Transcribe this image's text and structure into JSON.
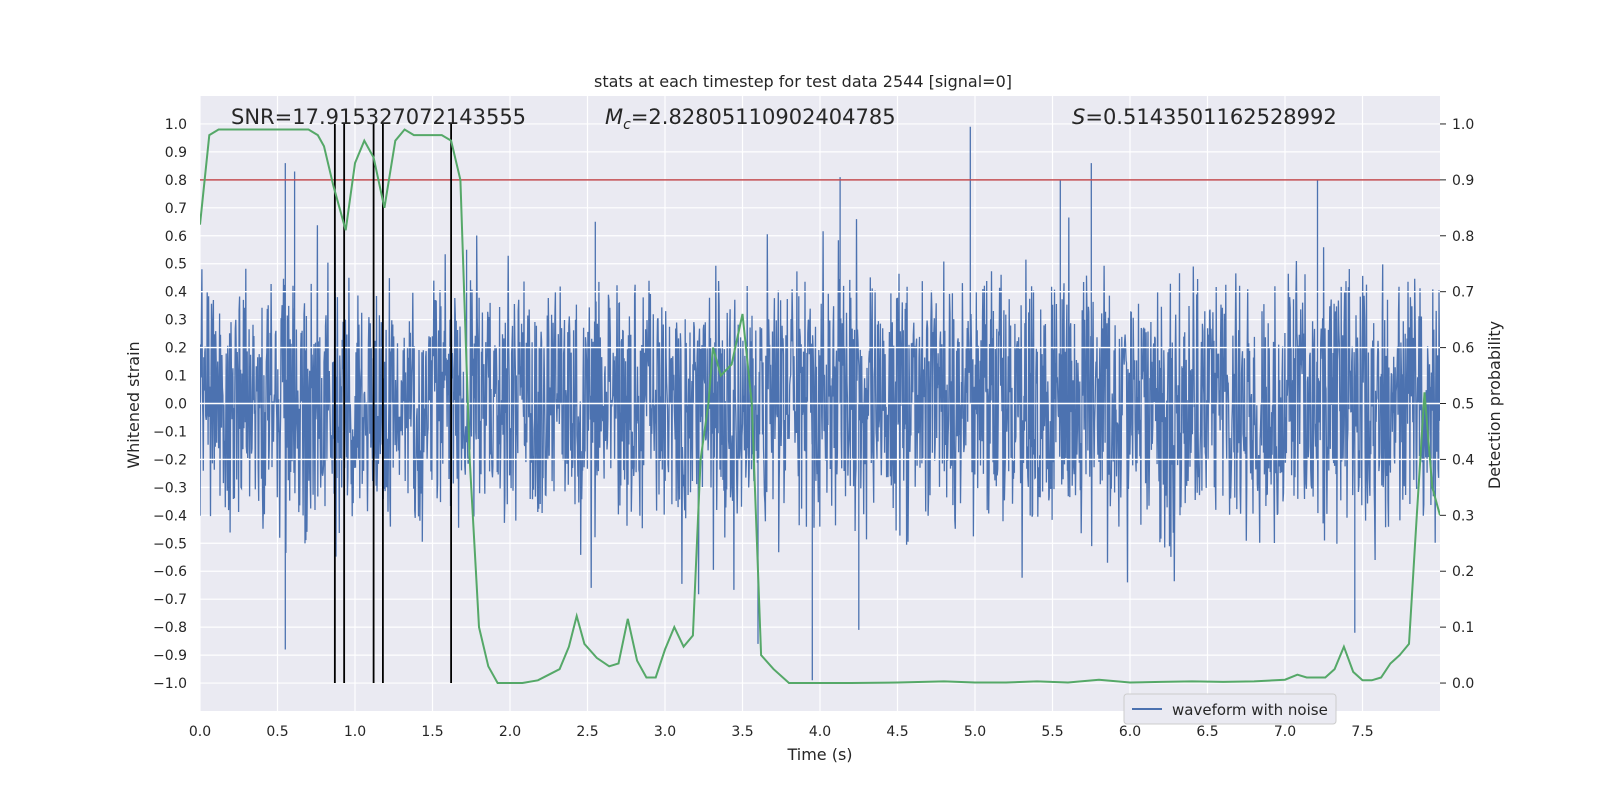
{
  "chart_data": {
    "type": "line",
    "title": "stats at each timestep for test data 2544 [signal=0]",
    "xlabel": "Time (s)",
    "ylabel_left": "Whitened strain",
    "ylabel_right": "Detection probability",
    "xlim": [
      0.0,
      8.0
    ],
    "ylim_left": [
      -1.1,
      1.1
    ],
    "ylim_right": [
      -0.05,
      1.05
    ],
    "xticks": [
      "0.0",
      "0.5",
      "1.0",
      "1.5",
      "2.0",
      "2.5",
      "3.0",
      "3.5",
      "4.0",
      "4.5",
      "5.0",
      "5.5",
      "6.0",
      "6.5",
      "7.0",
      "7.5"
    ],
    "yticks_left": [
      "1.0",
      "0.9",
      "0.8",
      "0.7",
      "0.6",
      "0.5",
      "0.4",
      "0.3",
      "0.2",
      "0.1",
      "0.0",
      "−0.1",
      "−0.2",
      "−0.3",
      "−0.4",
      "−0.5",
      "−0.6",
      "−0.7",
      "−0.8",
      "−0.9",
      "−1.0"
    ],
    "yticks_right": [
      "1.0",
      "0.9",
      "0.8",
      "0.7",
      "0.6",
      "0.5",
      "0.4",
      "0.3",
      "0.2",
      "0.1",
      "0.0"
    ],
    "annotations": {
      "snr": "SNR=17.915327072143555",
      "mc_symbol": "M",
      "mc_sub": "c",
      "mc_value": "=2.8280511090240478​5",
      "s_symbol": "S",
      "s_value": "=0.5143501162528992"
    },
    "legend": {
      "label": "waveform with noise",
      "placement": "lower-right"
    },
    "grid": true,
    "threshold": {
      "value": 0.9,
      "axis": "right",
      "color": "#c44e52"
    },
    "vlines": [
      0.87,
      0.93,
      1.12,
      1.18,
      1.62
    ],
    "series": [
      {
        "name": "waveform with noise",
        "axis": "left",
        "color": "#4c72b0",
        "style": "dense noise",
        "typical_abs_max": 0.45,
        "spikes": [
          {
            "x": 0.55,
            "y": 0.86
          },
          {
            "x": 0.61,
            "y": 0.83
          },
          {
            "x": 0.55,
            "y": -0.88
          },
          {
            "x": 4.13,
            "y": 0.81
          },
          {
            "x": 4.97,
            "y": 0.99
          },
          {
            "x": 5.75,
            "y": 0.86
          },
          {
            "x": 5.55,
            "y": 0.8
          },
          {
            "x": 7.21,
            "y": 0.8
          },
          {
            "x": 3.95,
            "y": -0.99
          },
          {
            "x": 3.6,
            "y": -0.86
          },
          {
            "x": 4.25,
            "y": -0.81
          },
          {
            "x": 7.45,
            "y": -0.82
          },
          {
            "x": 1.72,
            "y": 0.55
          },
          {
            "x": 2.55,
            "y": 0.65
          }
        ]
      },
      {
        "name": "",
        "axis": "right",
        "color": "#55a868",
        "x": [
          0.0,
          0.06,
          0.12,
          0.2,
          0.3,
          0.4,
          0.5,
          0.6,
          0.7,
          0.76,
          0.8,
          0.86,
          0.94,
          1.0,
          1.06,
          1.12,
          1.19,
          1.26,
          1.32,
          1.38,
          1.44,
          1.5,
          1.56,
          1.62,
          1.68,
          1.74,
          1.8,
          1.86,
          1.92,
          2.0,
          2.08,
          2.18,
          2.25,
          2.32,
          2.38,
          2.43,
          2.48,
          2.56,
          2.64,
          2.7,
          2.76,
          2.82,
          2.88,
          2.94,
          3.0,
          3.06,
          3.12,
          3.18,
          3.23,
          3.28,
          3.31,
          3.36,
          3.43,
          3.5,
          3.56,
          3.62,
          3.7,
          3.8,
          3.9,
          4.0,
          4.2,
          4.5,
          4.8,
          5.0,
          5.2,
          5.4,
          5.6,
          5.8,
          6.0,
          6.2,
          6.4,
          6.6,
          6.8,
          7.0,
          7.08,
          7.14,
          7.2,
          7.26,
          7.32,
          7.38,
          7.44,
          7.5,
          7.56,
          7.62,
          7.68,
          7.74,
          7.8,
          7.85,
          7.9,
          7.95,
          8.0
        ],
        "y": [
          0.82,
          0.98,
          0.99,
          0.99,
          0.99,
          0.99,
          0.99,
          0.99,
          0.99,
          0.98,
          0.96,
          0.89,
          0.81,
          0.93,
          0.97,
          0.94,
          0.85,
          0.97,
          0.99,
          0.98,
          0.98,
          0.98,
          0.98,
          0.97,
          0.9,
          0.4,
          0.1,
          0.03,
          0.0,
          0.0,
          0.0,
          0.005,
          0.015,
          0.025,
          0.065,
          0.12,
          0.07,
          0.045,
          0.03,
          0.035,
          0.115,
          0.04,
          0.01,
          0.01,
          0.06,
          0.1,
          0.065,
          0.085,
          0.4,
          0.5,
          0.6,
          0.55,
          0.57,
          0.66,
          0.5,
          0.05,
          0.025,
          0.0,
          0.0,
          0.0,
          0.0,
          0.001,
          0.003,
          0.001,
          0.001,
          0.003,
          0.001,
          0.006,
          0.001,
          0.002,
          0.003,
          0.002,
          0.003,
          0.006,
          0.015,
          0.01,
          0.01,
          0.01,
          0.025,
          0.065,
          0.02,
          0.005,
          0.005,
          0.01,
          0.035,
          0.05,
          0.07,
          0.3,
          0.52,
          0.35,
          0.3
        ]
      }
    ]
  }
}
